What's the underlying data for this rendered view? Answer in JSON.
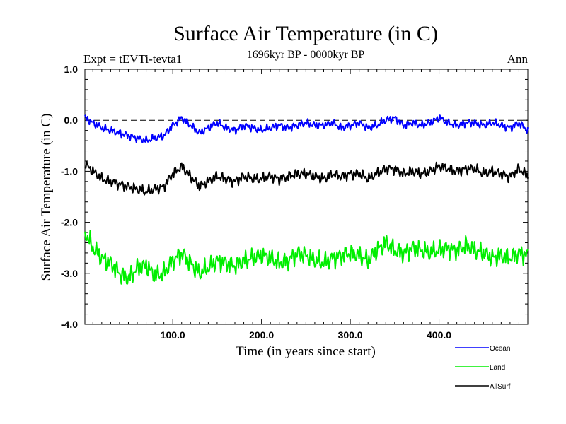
{
  "chart_data": {
    "type": "line",
    "title": "Surface Air Temperature (in C)",
    "subtitle": "1696kyr BP - 0000kyr BP",
    "experiment_label": "Expt = tEVTi-tevta1",
    "season_label": "Ann",
    "xlabel": "Time (in years since start)",
    "ylabel": "Surface Air Temperature (in C)",
    "xlim": [
      1,
      500
    ],
    "ylim": [
      -4.0,
      1.0
    ],
    "xticks": [
      100,
      200,
      300,
      400
    ],
    "xtick_labels": [
      "100.0",
      "200.0",
      "300.0",
      "400.0"
    ],
    "yticks": [
      1.0,
      0.0,
      -1.0,
      -2.0,
      -3.0,
      -4.0
    ],
    "ytick_labels": [
      "1.0",
      "0.0",
      "-1.0",
      "-2.0",
      "-3.0",
      "-4.0"
    ],
    "reference_line": 0.0,
    "legend_position": "bottom-right, outside plot",
    "series": [
      {
        "name": "Ocean",
        "color": "#0000ff",
        "x": [
          1,
          10,
          20,
          30,
          40,
          50,
          60,
          70,
          80,
          90,
          100,
          110,
          120,
          130,
          140,
          150,
          160,
          170,
          180,
          190,
          200,
          210,
          220,
          230,
          240,
          250,
          260,
          270,
          280,
          290,
          300,
          310,
          320,
          330,
          340,
          350,
          360,
          370,
          380,
          390,
          400,
          410,
          420,
          430,
          440,
          450,
          460,
          470,
          480,
          490,
          500
        ],
        "values": [
          0.05,
          -0.05,
          -0.15,
          -0.2,
          -0.25,
          -0.3,
          -0.35,
          -0.4,
          -0.35,
          -0.3,
          -0.1,
          0.05,
          -0.1,
          -0.25,
          -0.15,
          -0.05,
          -0.15,
          -0.2,
          -0.1,
          -0.15,
          -0.2,
          -0.15,
          -0.1,
          -0.15,
          -0.1,
          -0.05,
          -0.1,
          -0.1,
          -0.05,
          -0.15,
          -0.1,
          -0.05,
          -0.15,
          -0.1,
          0.0,
          0.05,
          -0.1,
          -0.05,
          -0.1,
          -0.05,
          0.05,
          -0.05,
          -0.1,
          -0.05,
          -0.05,
          -0.1,
          -0.05,
          -0.1,
          -0.15,
          -0.05,
          -0.2
        ]
      },
      {
        "name": "Land",
        "color": "#00ee00",
        "x": [
          1,
          10,
          20,
          30,
          40,
          50,
          60,
          70,
          80,
          90,
          100,
          110,
          120,
          130,
          140,
          150,
          160,
          170,
          180,
          190,
          200,
          210,
          220,
          230,
          240,
          250,
          260,
          270,
          280,
          290,
          300,
          310,
          320,
          330,
          340,
          350,
          360,
          370,
          380,
          390,
          400,
          410,
          420,
          430,
          440,
          450,
          460,
          470,
          480,
          490,
          500
        ],
        "values": [
          -2.2,
          -2.5,
          -2.7,
          -2.8,
          -3.0,
          -3.1,
          -2.9,
          -2.85,
          -3.05,
          -3.0,
          -2.75,
          -2.6,
          -2.8,
          -3.0,
          -2.9,
          -2.75,
          -2.8,
          -2.85,
          -2.75,
          -2.7,
          -2.65,
          -2.7,
          -2.8,
          -2.75,
          -2.6,
          -2.65,
          -2.75,
          -2.8,
          -2.7,
          -2.65,
          -2.6,
          -2.65,
          -2.75,
          -2.55,
          -2.4,
          -2.55,
          -2.6,
          -2.5,
          -2.55,
          -2.6,
          -2.55,
          -2.5,
          -2.55,
          -2.45,
          -2.55,
          -2.6,
          -2.7,
          -2.65,
          -2.7,
          -2.6,
          -2.65
        ]
      },
      {
        "name": "AllSurf",
        "color": "#000000",
        "x": [
          1,
          10,
          20,
          30,
          40,
          50,
          60,
          70,
          80,
          90,
          100,
          110,
          120,
          130,
          140,
          150,
          160,
          170,
          180,
          190,
          200,
          210,
          220,
          230,
          240,
          250,
          260,
          270,
          280,
          290,
          300,
          310,
          320,
          330,
          340,
          350,
          360,
          370,
          380,
          390,
          400,
          410,
          420,
          430,
          440,
          450,
          460,
          470,
          480,
          490,
          500
        ],
        "values": [
          -0.85,
          -1.0,
          -1.15,
          -1.2,
          -1.25,
          -1.3,
          -1.35,
          -1.4,
          -1.35,
          -1.3,
          -1.05,
          -0.9,
          -1.1,
          -1.3,
          -1.2,
          -1.1,
          -1.15,
          -1.2,
          -1.1,
          -1.15,
          -1.15,
          -1.1,
          -1.15,
          -1.1,
          -1.05,
          -1.05,
          -1.1,
          -1.15,
          -1.05,
          -1.1,
          -1.05,
          -1.05,
          -1.15,
          -1.05,
          -0.95,
          -0.95,
          -1.05,
          -1.0,
          -1.05,
          -1.0,
          -0.9,
          -0.95,
          -1.0,
          -0.95,
          -0.95,
          -1.05,
          -1.0,
          -1.05,
          -1.1,
          -0.95,
          -1.1
        ]
      }
    ]
  }
}
